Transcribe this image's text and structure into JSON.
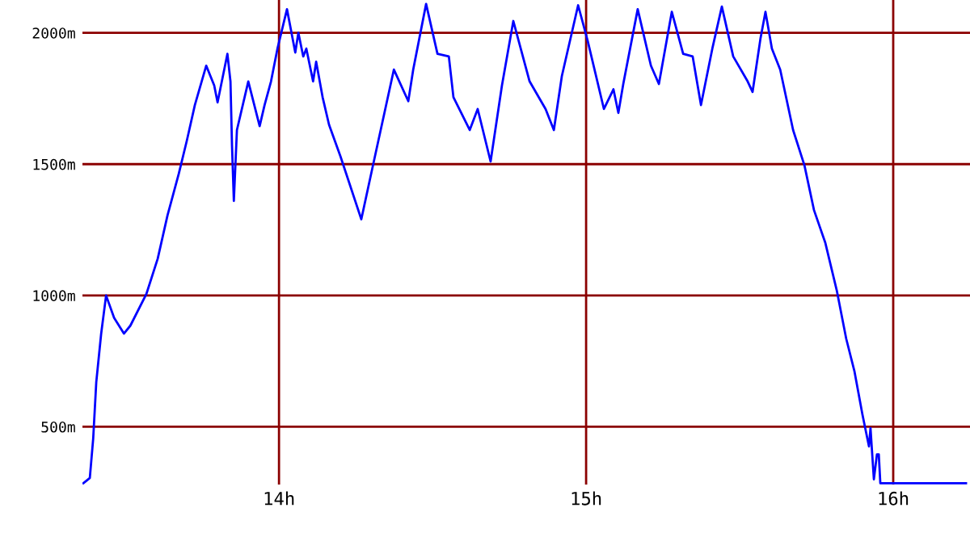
{
  "chart_data": {
    "type": "line",
    "x": [
      13.363,
      13.384,
      13.395,
      13.405,
      13.421,
      13.437,
      13.463,
      13.495,
      13.516,
      13.568,
      13.605,
      13.637,
      13.674,
      13.7,
      13.726,
      13.763,
      13.789,
      13.8,
      13.832,
      13.842,
      13.847,
      13.853,
      13.863,
      13.9,
      13.937,
      13.953,
      13.974,
      13.995,
      14.026,
      14.053,
      14.063,
      14.079,
      14.089,
      14.111,
      14.121,
      14.142,
      14.163,
      14.2,
      14.268,
      14.305,
      14.374,
      14.421,
      14.437,
      14.479,
      14.516,
      14.553,
      14.568,
      14.621,
      14.647,
      14.689,
      14.726,
      14.763,
      14.816,
      14.868,
      14.895,
      14.921,
      14.974,
      15.005,
      15.058,
      15.089,
      15.105,
      15.121,
      15.168,
      15.211,
      15.237,
      15.279,
      15.316,
      15.347,
      15.374,
      15.411,
      15.442,
      15.479,
      15.526,
      15.542,
      15.568,
      15.584,
      15.605,
      15.632,
      15.674,
      15.711,
      15.742,
      15.779,
      15.816,
      15.847,
      15.874,
      15.9,
      15.921,
      15.926,
      15.937,
      15.947,
      15.953,
      15.958,
      16.237
    ],
    "series": [
      {
        "color": "#0000ff",
        "values": [
          285,
          305,
          455,
          670,
          855,
          1000,
          915,
          855,
          885,
          1005,
          1140,
          1305,
          1465,
          1590,
          1725,
          1875,
          1800,
          1735,
          1920,
          1815,
          1570,
          1360,
          1630,
          1815,
          1645,
          1725,
          1815,
          1940,
          2090,
          1925,
          2000,
          1910,
          1940,
          1815,
          1890,
          1755,
          1650,
          1530,
          1290,
          1490,
          1860,
          1740,
          1860,
          2110,
          1920,
          1910,
          1755,
          1630,
          1710,
          1510,
          1800,
          2045,
          1815,
          1710,
          1630,
          1835,
          2105,
          1970,
          1710,
          1785,
          1695,
          1805,
          2090,
          1875,
          1805,
          2080,
          1920,
          1910,
          1725,
          1940,
          2100,
          1910,
          1815,
          1775,
          1980,
          2080,
          1940,
          1860,
          1630,
          1495,
          1325,
          1200,
          1020,
          835,
          710,
          545,
          425,
          495,
          300,
          395,
          395,
          285,
          285
        ]
      }
    ],
    "xlim": [
      13.36,
      16.25
    ],
    "ylim": [
      280,
      2125
    ],
    "xticks": [
      {
        "value": 14,
        "label": "14h"
      },
      {
        "value": 15,
        "label": "15h"
      },
      {
        "value": 16,
        "label": "16h"
      }
    ],
    "yticks": [
      {
        "value": 500,
        "label": "500m"
      },
      {
        "value": 1000,
        "label": "1000m"
      },
      {
        "value": 1500,
        "label": "1500m"
      },
      {
        "value": 2000,
        "label": "2000m"
      }
    ],
    "grid": true,
    "marker": "none",
    "line_style": "solid"
  }
}
